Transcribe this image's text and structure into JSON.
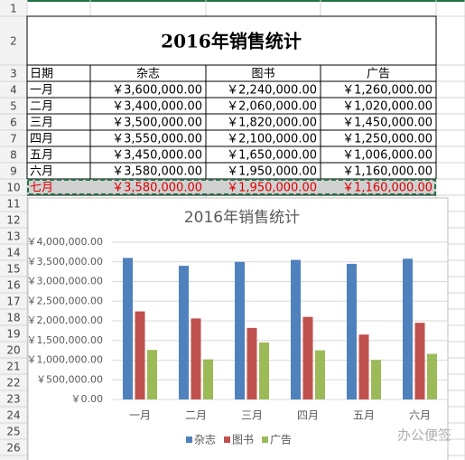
{
  "sheet": {
    "row_numbers": [
      1,
      2,
      3,
      4,
      5,
      6,
      7,
      8,
      9,
      10,
      11,
      12,
      13,
      14,
      15,
      16,
      17,
      18,
      19,
      20,
      21,
      22,
      23,
      24,
      25,
      26
    ],
    "title": "2016年销售统计",
    "header": [
      "日期",
      "杂志",
      "图书",
      "广告"
    ],
    "rows": [
      [
        "一月",
        "￥3,600,000.00",
        "￥2,240,000.00",
        "￥1,260,000.00"
      ],
      [
        "二月",
        "￥3,400,000.00",
        "￥2,060,000.00",
        "￥1,020,000.00"
      ],
      [
        "三月",
        "￥3,500,000.00",
        "￥1,820,000.00",
        "￥1,450,000.00"
      ],
      [
        "四月",
        "￥3,550,000.00",
        "￥2,100,000.00",
        "￥1,250,000.00"
      ],
      [
        "五月",
        "￥3,450,000.00",
        "￥1,650,000.00",
        "￥1,006,000.00"
      ],
      [
        "六月",
        "￥3,580,000.00",
        "￥1,950,000.00",
        "￥1,160,000.00"
      ],
      [
        "七月",
        "￥3,580,000.00",
        "￥1,950,000.00",
        "￥1,160,000.00"
      ]
    ]
  },
  "chart_data": {
    "type": "bar",
    "title": "2016年销售统计",
    "categories": [
      "一月",
      "二月",
      "三月",
      "四月",
      "五月",
      "六月"
    ],
    "series": [
      {
        "name": "杂志",
        "color": "#4f81bd",
        "values": [
          3600000,
          3400000,
          3500000,
          3550000,
          3450000,
          3580000
        ]
      },
      {
        "name": "图书",
        "color": "#c0504d",
        "values": [
          2240000,
          2060000,
          1820000,
          2100000,
          1650000,
          1950000
        ]
      },
      {
        "name": "广告",
        "color": "#9bbb59",
        "values": [
          1260000,
          1020000,
          1450000,
          1250000,
          1006000,
          1160000
        ]
      }
    ],
    "ylim": [
      0,
      4000000
    ],
    "yticks": [
      {
        "value": 0,
        "label": "￥0.00"
      },
      {
        "value": 500000,
        "label": "￥500,000.00"
      },
      {
        "value": 1000000,
        "label": "￥1,000,000.00"
      },
      {
        "value": 1500000,
        "label": "￥1,500,000.00"
      },
      {
        "value": 2000000,
        "label": "￥2,000,000.00"
      },
      {
        "value": 2500000,
        "label": "￥2,500,000.00"
      },
      {
        "value": 3000000,
        "label": "￥3,000,000.00"
      },
      {
        "value": 3500000,
        "label": "￥3,500,000.00"
      },
      {
        "value": 4000000,
        "label": "￥4,000,000.00"
      }
    ],
    "grid": true,
    "legend": "bottom"
  },
  "watermark": "办公便签"
}
